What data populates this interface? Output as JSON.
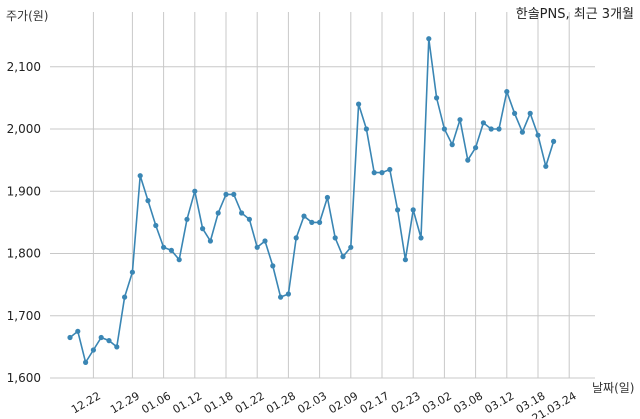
{
  "chart_data": {
    "type": "line",
    "title": "한솔PNS, 최근 3개월",
    "ylabel": "주가(원)",
    "xlabel": "날짜(일)",
    "ylim": [
      1600,
      2150
    ],
    "yticks": [
      1600,
      1700,
      1800,
      1900,
      2000,
      2100
    ],
    "ytick_labels": [
      "1,600",
      "1,700",
      "1,800",
      "1,900",
      "2,000",
      "2,100"
    ],
    "xtick_labels": [
      "12.22",
      "12.29",
      "01.06",
      "01.12",
      "01.18",
      "01.22",
      "01.28",
      "02.03",
      "02.09",
      "02.17",
      "02.23",
      "03.02",
      "03.08",
      "03.12",
      "03.18",
      "21.03.24"
    ],
    "xtick_index": [
      3,
      8,
      12,
      16,
      20,
      24,
      28,
      32,
      36,
      40,
      44,
      48,
      52,
      56,
      60,
      64
    ],
    "grid": true,
    "line_color": "#3a86b4",
    "series": [
      {
        "values": [
          1665,
          1675,
          1625,
          1645,
          1665,
          1660,
          1650,
          1730,
          1770,
          1925,
          1885,
          1845,
          1810,
          1805,
          1790,
          1855,
          1900,
          1840,
          1820,
          1865,
          1895,
          1895,
          1865,
          1855,
          1810,
          1820,
          1780,
          1730,
          1735,
          1825,
          1860,
          1850,
          1850,
          1890,
          1825,
          1795,
          1810,
          2040,
          2000,
          1930,
          1930,
          1935,
          1870,
          1790,
          1870,
          1825,
          2145,
          2050,
          2000,
          1975,
          2015,
          1950,
          1970,
          2010,
          2000,
          2000,
          2060,
          2025,
          1995,
          2025,
          1990,
          1940,
          1980
        ]
      }
    ]
  }
}
